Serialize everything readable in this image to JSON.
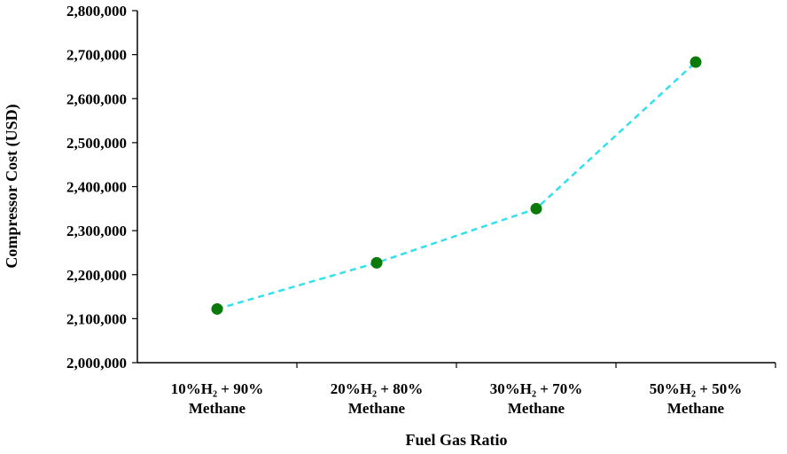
{
  "chart_data": {
    "type": "line",
    "title": "",
    "xlabel": "Fuel Gas Ratio",
    "ylabel": "Compressor Cost (USD)",
    "categories": [
      [
        "10%H₂ + 90%",
        "Methane"
      ],
      [
        "20%H₂ + 80%",
        "Methane"
      ],
      [
        "30%H₂ + 70%",
        "Methane"
      ],
      [
        "50%H₂ + 50%",
        "Methane"
      ]
    ],
    "series": [
      {
        "values": [
          2122000,
          2227000,
          2350000,
          2683000
        ]
      }
    ],
    "ylim": [
      2000000,
      2800000
    ],
    "ytick_step": 100000,
    "ytick_labels": [
      "2,000,000",
      "2,100,000",
      "2,200,000",
      "2,300,000",
      "2,400,000",
      "2,500,000",
      "2,600,000",
      "2,700,000",
      "2,800,000"
    ],
    "grid": false,
    "legend": "none",
    "line_color": "#33e0ee",
    "line_style": "dashed",
    "marker_color": "#0a7a0a"
  }
}
